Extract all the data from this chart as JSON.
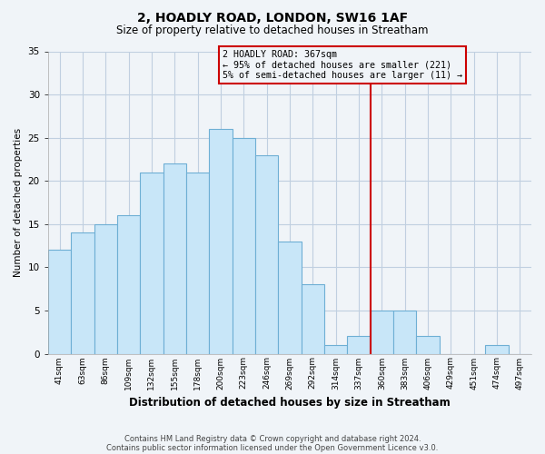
{
  "title": "2, HOADLY ROAD, LONDON, SW16 1AF",
  "subtitle": "Size of property relative to detached houses in Streatham",
  "xlabel": "Distribution of detached houses by size in Streatham",
  "ylabel": "Number of detached properties",
  "bin_labels": [
    "41sqm",
    "63sqm",
    "86sqm",
    "109sqm",
    "132sqm",
    "155sqm",
    "178sqm",
    "200sqm",
    "223sqm",
    "246sqm",
    "269sqm",
    "292sqm",
    "314sqm",
    "337sqm",
    "360sqm",
    "383sqm",
    "406sqm",
    "429sqm",
    "451sqm",
    "474sqm",
    "497sqm"
  ],
  "bar_values": [
    12,
    14,
    15,
    16,
    21,
    22,
    21,
    26,
    25,
    23,
    13,
    8,
    1,
    2,
    5,
    5,
    2,
    0,
    0,
    1,
    0
  ],
  "bar_color": "#c8e6f8",
  "bar_edge_color": "#6eafd4",
  "ylim": [
    0,
    35
  ],
  "yticks": [
    0,
    5,
    10,
    15,
    20,
    25,
    30,
    35
  ],
  "vline_x_index": 14,
  "vline_color": "#cc0000",
  "annotation_title": "2 HOADLY ROAD: 367sqm",
  "annotation_line1": "← 95% of detached houses are smaller (221)",
  "annotation_line2": "5% of semi-detached houses are larger (11) →",
  "annotation_box_edge": "#cc0000",
  "footer_line1": "Contains HM Land Registry data © Crown copyright and database right 2024.",
  "footer_line2": "Contains public sector information licensed under the Open Government Licence v3.0.",
  "background_color": "#f0f4f8"
}
